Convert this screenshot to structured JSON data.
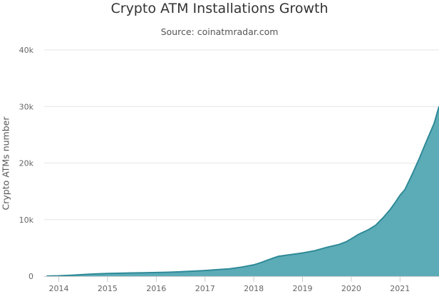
{
  "chart_data": {
    "type": "area",
    "title": "Crypto ATM Installations Growth",
    "subtitle": "Source: coinatmradar.com",
    "xlabel": "",
    "ylabel": "Crypto ATMs number",
    "xlim": [
      2013.7,
      2021.8
    ],
    "ylim": [
      0,
      40000
    ],
    "y_ticks": [
      {
        "value": 0,
        "label": "0"
      },
      {
        "value": 10000,
        "label": "10k"
      },
      {
        "value": 20000,
        "label": "20k"
      },
      {
        "value": 30000,
        "label": "30k"
      },
      {
        "value": 40000,
        "label": "40k"
      }
    ],
    "x_ticks": [
      {
        "value": 2014,
        "label": "2014"
      },
      {
        "value": 2015,
        "label": "2015"
      },
      {
        "value": 2016,
        "label": "2016"
      },
      {
        "value": 2017,
        "label": "2017"
      },
      {
        "value": 2018,
        "label": "2018"
      },
      {
        "value": 2019,
        "label": "2019"
      },
      {
        "value": 2020,
        "label": "2020"
      },
      {
        "value": 2021,
        "label": "2021"
      }
    ],
    "grid": true,
    "legend": "none",
    "colors": {
      "fill": "#5cacb8",
      "line": "#2f8a97",
      "grid": "#e6e6e6",
      "axis": "#cccccc"
    },
    "series": [
      {
        "x": [
          2013.75,
          2014.0,
          2014.25,
          2014.5,
          2014.75,
          2015.0,
          2015.25,
          2015.5,
          2015.75,
          2016.0,
          2016.25,
          2016.5,
          2016.75,
          2017.0,
          2017.25,
          2017.5,
          2017.75,
          2018.0,
          2018.15,
          2018.3,
          2018.5,
          2018.75,
          2019.0,
          2019.25,
          2019.5,
          2019.75,
          2019.9,
          2020.0,
          2020.15,
          2020.35,
          2020.5,
          2020.65,
          2020.8,
          2020.9,
          2021.0,
          2021.1,
          2021.25,
          2021.4,
          2021.55,
          2021.7,
          2021.8
        ],
        "values": [
          20,
          60,
          150,
          280,
          400,
          480,
          520,
          560,
          600,
          640,
          700,
          780,
          880,
          1000,
          1150,
          1300,
          1600,
          2000,
          2400,
          2900,
          3500,
          3800,
          4100,
          4500,
          5100,
          5600,
          6100,
          6600,
          7400,
          8200,
          9000,
          10300,
          11800,
          13000,
          14300,
          15300,
          18000,
          20900,
          24000,
          27000,
          30000
        ]
      }
    ]
  }
}
